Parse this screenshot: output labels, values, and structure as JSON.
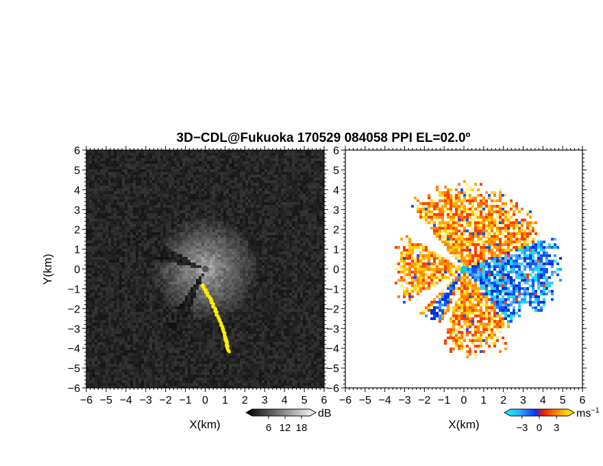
{
  "title": "3D−CDL@Fukuoka 170529 084058 PPI EL=02.0º",
  "colors": {
    "yellow_cell": "#ffee00",
    "radial_warm": [
      "#ff4000",
      "#ff8000",
      "#ffa500",
      "#ffd200",
      "#ffee88"
    ],
    "radial_cold": [
      "#0033dd",
      "#1155ff",
      "#3399ff",
      "#66bbee",
      "#00e5ee"
    ]
  },
  "chart_data": [
    {
      "type": "heatmap",
      "name": "reflectivity-ppi",
      "xlabel": "X(km)",
      "ylabel": "Y(km)",
      "xlim": [
        -6,
        6
      ],
      "ylim": [
        -6,
        6
      ],
      "xticks": [
        "−6",
        "−5",
        "−4",
        "−3",
        "−2",
        "−1",
        "0",
        "1",
        "2",
        "3",
        "4",
        "5",
        "6"
      ],
      "yticks": [
        "−6",
        "−5",
        "−4",
        "−3",
        "−2",
        "−1",
        "0",
        "1",
        "2",
        "3",
        "4",
        "5",
        "6"
      ],
      "colorbar": {
        "ticks": [
          "6",
          "12",
          "18"
        ],
        "unit": "dB",
        "range": [
          0,
          21
        ]
      },
      "colormap": "grayscale"
    },
    {
      "type": "heatmap",
      "name": "doppler-velocity-ppi",
      "xlabel": "X(km)",
      "xlim": [
        -6,
        6
      ],
      "ylim": [
        -6,
        6
      ],
      "xticks": [
        "−6",
        "−5",
        "−4",
        "−3",
        "−2",
        "−1",
        "0",
        "1",
        "2",
        "3",
        "4",
        "5",
        "6"
      ],
      "yticks": [
        "−6",
        "−5",
        "−4",
        "−3",
        "−2",
        "−1",
        "0",
        "1",
        "2",
        "3",
        "4",
        "5",
        "6"
      ],
      "colorbar": {
        "ticks": [
          "−3",
          "0",
          "3"
        ],
        "unit": "ms",
        "unit_exp": "−1",
        "range": [
          -5,
          5
        ]
      },
      "colormap": "cyan-blue-red-orange-yellow"
    }
  ]
}
